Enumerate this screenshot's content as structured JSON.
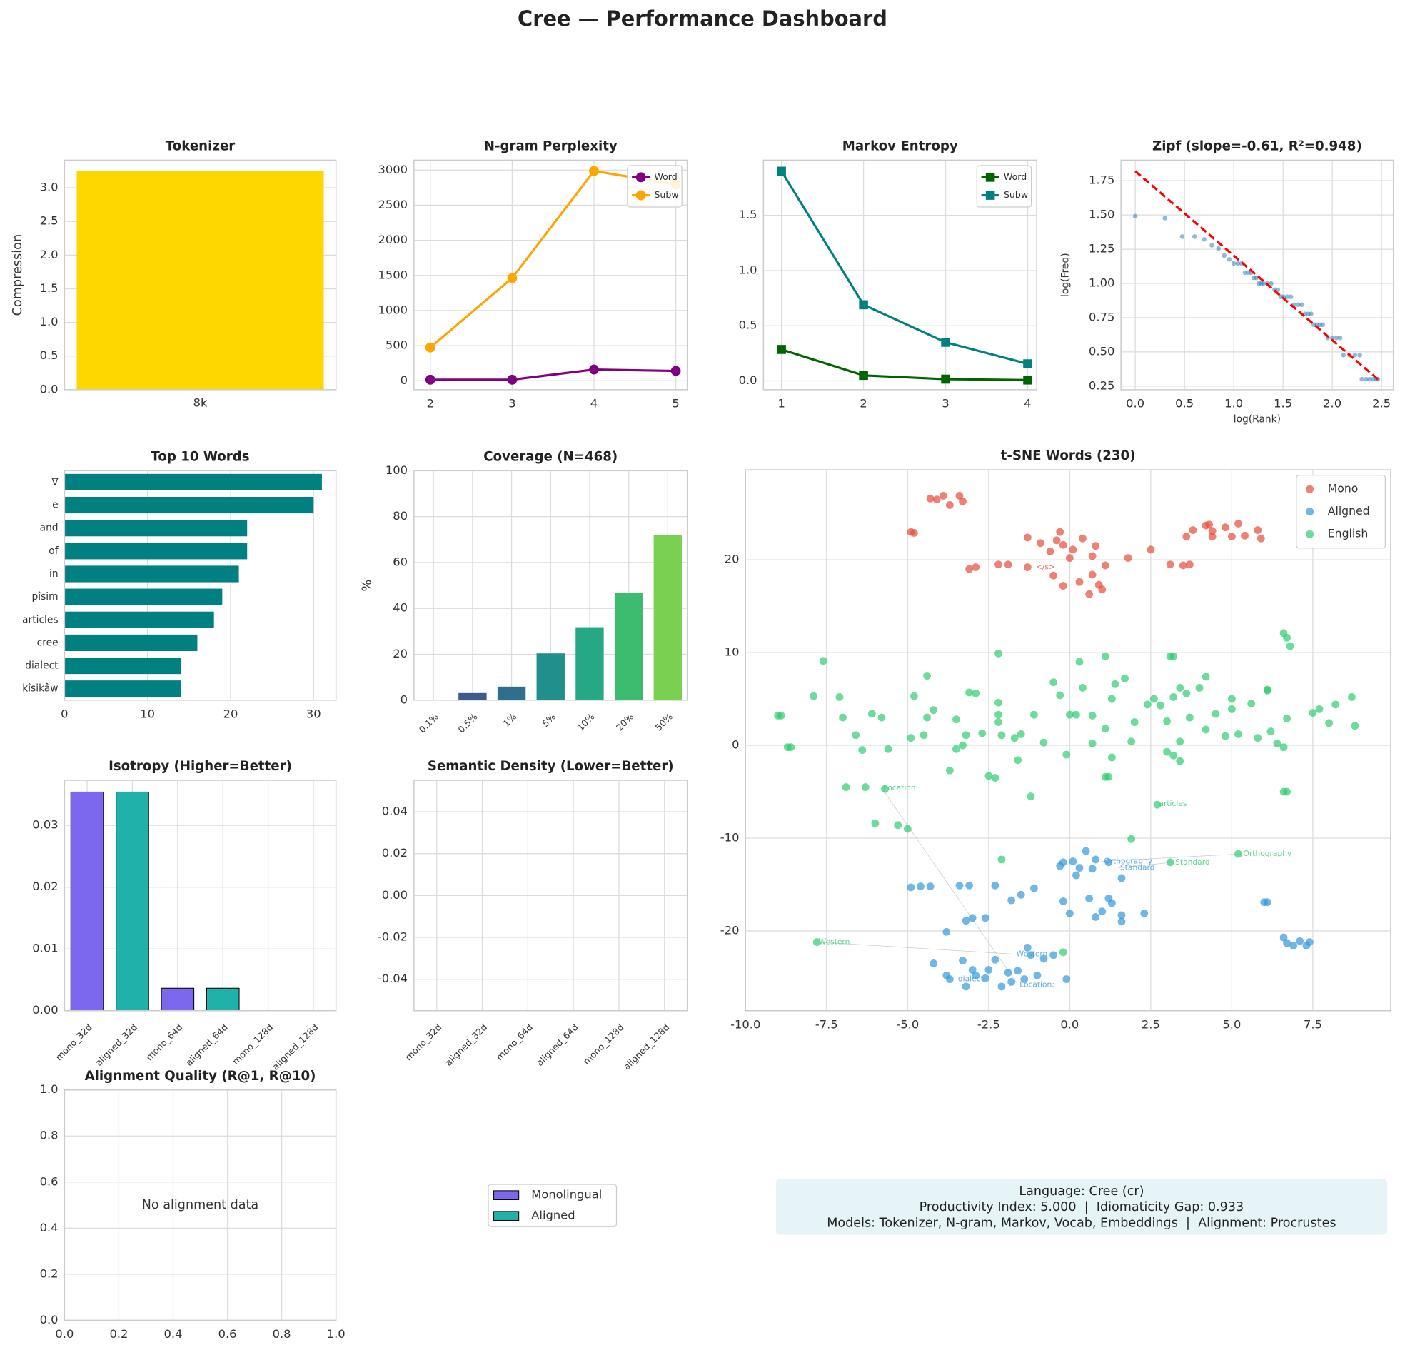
{
  "title": "Cree — Performance Dashboard",
  "chart_data": [
    {
      "type": "bar",
      "title": "Tokenizer",
      "ylabel": "Compression",
      "categories": [
        "8k"
      ],
      "values": [
        3.25
      ],
      "color": "#ffd700",
      "ylim": [
        0,
        3.41
      ],
      "yticks": [
        {
          "value": 0,
          "label": "0.0"
        },
        0.5,
        {
          "value": 1,
          "label": "1.0"
        },
        1.5,
        {
          "value": 2,
          "label": "2.0"
        },
        2.5,
        {
          "value": 3,
          "label": "3.0"
        }
      ],
      "grid": true
    },
    {
      "type": "line",
      "title": "N-gram Perplexity",
      "x": [
        2,
        3,
        4,
        5
      ],
      "marker": "o",
      "series": [
        {
          "name": "Word",
          "color": "#800080",
          "values": [
            15,
            15,
            160,
            140
          ]
        },
        {
          "name": "Subw",
          "color": "#ffa500",
          "values": [
            474,
            1462,
            2987,
            2795
          ]
        }
      ],
      "xlim": [
        1.8,
        5.14
      ],
      "xticks": [
        2,
        3,
        4,
        5
      ],
      "ylim": [
        -128,
        3141
      ],
      "yticks": [
        0,
        500,
        1000,
        1500,
        2000,
        2500,
        3000
      ],
      "grid": true,
      "legend": "upper right"
    },
    {
      "type": "line",
      "title": "Markov Entropy",
      "x": [
        1,
        2,
        3,
        4
      ],
      "marker": "s",
      "series": [
        {
          "name": "Word",
          "color": "#006400",
          "values": [
            0.285,
            0.05,
            0.016,
            0.008
          ]
        },
        {
          "name": "Subw",
          "color": "#008080",
          "values": [
            1.9,
            0.69,
            0.35,
            0.155
          ]
        }
      ],
      "xlim": [
        0.78,
        4.11
      ],
      "xticks": [
        1,
        2,
        3,
        4
      ],
      "ylim": [
        -0.08,
        2.0
      ],
      "yticks": [
        {
          "value": 0,
          "label": "0.0"
        },
        0.5,
        {
          "value": 1,
          "label": "1.0"
        },
        1.5
      ],
      "grid": true,
      "legend": "upper right"
    },
    {
      "type": "scatter",
      "title": "Zipf (slope=-0.61, R²=0.948)",
      "xlabel": "log(Rank)",
      "ylabel": "log(Freq)",
      "color": "#1f77b4",
      "alpha": 0.5,
      "x": [
        0,
        0.301,
        0.477,
        0.602,
        0.699,
        0.778,
        0.845,
        0.903,
        0.954,
        1.0,
        1.041,
        1.079,
        1.114,
        1.146,
        1.176,
        1.204,
        1.23,
        1.255,
        1.279,
        1.301,
        1.342,
        1.38,
        1.415,
        1.447,
        1.477,
        1.505,
        1.544,
        1.58,
        1.613,
        1.653,
        1.69,
        1.724,
        1.756,
        1.785,
        1.813,
        1.845,
        1.875,
        1.903,
        1.954,
        2.0,
        2.041,
        2.079,
        2.114,
        2.176,
        2.23,
        2.279,
        2.301,
        2.342,
        2.38,
        2.415,
        2.447,
        2.462
      ],
      "y": [
        1.491,
        1.477,
        1.342,
        1.342,
        1.322,
        1.279,
        1.255,
        1.204,
        1.176,
        1.146,
        1.146,
        1.146,
        1.079,
        1.079,
        1.079,
        1.041,
        1.041,
        1.0,
        1.0,
        1.0,
        1.0,
        1.0,
        0.954,
        0.954,
        0.903,
        0.903,
        0.903,
        0.903,
        0.845,
        0.845,
        0.845,
        0.778,
        0.778,
        0.778,
        0.699,
        0.699,
        0.699,
        0.699,
        0.602,
        0.602,
        0.602,
        0.602,
        0.477,
        0.477,
        0.477,
        0.477,
        0.301,
        0.301,
        0.301,
        0.301,
        0.301,
        0.301
      ],
      "fit": {
        "x": [
          0,
          2.48
        ],
        "y": [
          1.82,
          0.29
        ],
        "color": "#ff0000"
      },
      "xlim": [
        -0.145,
        2.62
      ],
      "xticks": [
        {
          "value": 0,
          "label": "0.0"
        },
        0.5,
        {
          "value": 1,
          "label": "1.0"
        },
        1.5,
        {
          "value": 2,
          "label": "2.0"
        },
        2.5
      ],
      "ylim": [
        0.224,
        1.9
      ],
      "yticks": [
        0.25,
        {
          "value": 0.5,
          "label": "0.50"
        },
        0.75,
        {
          "value": 1,
          "label": "1.00"
        },
        1.25,
        {
          "value": 1.5,
          "label": "1.50"
        },
        1.75
      ],
      "grid": true
    },
    {
      "type": "barh",
      "title": "Top 10 Words",
      "categories": [
        "∇",
        "e",
        "and",
        "of",
        "in",
        "pîsim",
        "articles",
        "cree",
        "dialect",
        "kîsikâw"
      ],
      "values": [
        31,
        30,
        22,
        22,
        21,
        19,
        18,
        16,
        14,
        14
      ],
      "color": "#008080",
      "xlim": [
        0,
        32.7
      ],
      "xticks": [
        0,
        10,
        20,
        30
      ],
      "grid": true
    },
    {
      "type": "bar",
      "title": "Coverage (N=468)",
      "ylabel": "%",
      "categories": [
        "0.1%",
        "0.5%",
        "1%",
        "5%",
        "10%",
        "20%",
        "50%"
      ],
      "values": [
        0.2,
        3.1,
        5.9,
        20.4,
        31.8,
        46.7,
        71.8
      ],
      "colors": [
        "#443983",
        "#3b5b8c",
        "#2e6f8e",
        "#218f8c",
        "#26a884",
        "#3dbb6f",
        "#7ad151"
      ],
      "ylim": [
        0,
        100
      ],
      "yticks": [
        0,
        20,
        40,
        60,
        80,
        100
      ],
      "grid": true,
      "xtick_rotation": 45
    },
    {
      "type": "bar",
      "title": "Isotropy (Higher=Better)",
      "categories": [
        "mono_32d",
        "aligned_32d",
        "mono_64d",
        "aligned_64d",
        "mono_128d",
        "aligned_128d"
      ],
      "values": [
        0.0354,
        0.0354,
        0.00364,
        0.00364,
        0,
        0
      ],
      "colors": [
        "#7b68ee",
        "#20b2aa",
        "#7b68ee",
        "#20b2aa",
        "#7b68ee",
        "#20b2aa"
      ],
      "edgecolor": "#000000",
      "ylim": [
        0,
        0.0373
      ],
      "yticks": [
        {
          "value": 0,
          "label": "0.00"
        },
        0.01,
        0.02,
        0.03
      ],
      "grid": true,
      "xtick_rotation": 45
    },
    {
      "type": "bar",
      "title": "Semantic Density (Lower=Better)",
      "categories": [
        "mono_32d",
        "aligned_32d",
        "mono_64d",
        "aligned_64d",
        "mono_128d",
        "aligned_128d"
      ],
      "values": [
        0,
        0,
        0,
        0,
        0,
        0
      ],
      "colors": [
        "#7b68ee",
        "#20b2aa",
        "#7b68ee",
        "#20b2aa",
        "#7b68ee",
        "#20b2aa"
      ],
      "edgecolor": "#000000",
      "ylim": [
        -0.055,
        0.055
      ],
      "yticks": [
        -0.04,
        -0.02,
        {
          "value": 0,
          "label": "0.00"
        },
        0.02,
        0.04
      ],
      "grid": true,
      "xtick_rotation": 45
    },
    {
      "type": "empty",
      "title": "Alignment Quality (R@1, R@10)",
      "annotation": "No alignment data",
      "xlim": [
        0,
        1
      ],
      "xticks": [
        {
          "value": 0,
          "label": "0.0"
        },
        0.2,
        0.4,
        0.6,
        0.8,
        {
          "value": 1,
          "label": "1.0"
        }
      ],
      "ylim": [
        0,
        1
      ],
      "yticks": [
        {
          "value": 0,
          "label": "0.0"
        },
        0.2,
        0.4,
        0.6,
        0.8,
        {
          "value": 1,
          "label": "1.0"
        }
      ],
      "grid": true
    },
    {
      "type": "scatter",
      "title": "t-SNE Words (230)",
      "alpha": 0.7,
      "legend": "upper right",
      "series": [
        {
          "name": "Mono",
          "color": "#e74c3c",
          "x": [
            -4.1,
            -3.9,
            -3.7,
            -3.4,
            -3.3,
            -4.3,
            -4.9,
            -4.8,
            -1.3,
            -0.9,
            -0.6,
            -0.4,
            -0.3,
            -0.2,
            0.1,
            0.0,
            0.4,
            0.8,
            0.7,
            1.1,
            -3.1,
            -2.9,
            -2.2,
            -1.9,
            -1.3,
            -0.5,
            -0.2,
            0.3,
            0.7,
            0.9,
            0.6,
            1.0,
            1.8,
            2.5,
            3.1,
            3.5,
            3.7,
            3.6,
            3.8,
            4.2,
            4.3,
            4.4,
            4.4,
            4.8,
            5.0,
            5.2,
            5.4,
            5.8,
            5.9
          ],
          "y": [
            26.5,
            26.9,
            25.9,
            26.9,
            26.3,
            26.6,
            23.0,
            22.9,
            22.4,
            21.8,
            20.9,
            22.1,
            23.0,
            21.6,
            21.1,
            20.2,
            22.3,
            21.5,
            20.4,
            19.4,
            19.0,
            19.2,
            19.5,
            19.5,
            19.2,
            18.3,
            17.2,
            17.6,
            18.4,
            17.3,
            16.3,
            16.8,
            20.2,
            21.1,
            19.5,
            19.4,
            19.5,
            22.5,
            23.2,
            23.7,
            23.8,
            22.5,
            23.1,
            23.5,
            22.5,
            23.9,
            22.6,
            23.2,
            22.3
          ]
        },
        {
          "name": "Aligned",
          "color": "#3498db",
          "x": [
            -3.8,
            -3.7,
            -3.3,
            -3.2,
            -3.0,
            -2.9,
            -2.6,
            -2.5,
            -2.3,
            -2.1,
            -1.9,
            -1.8,
            -1.6,
            -1.4,
            -1.2,
            -1.0,
            -0.8,
            -0.1,
            -0.5,
            -1.3,
            -4.9,
            -4.6,
            -4.3,
            -3.4,
            -3.1,
            -3.2,
            -3.0,
            -2.6,
            -2.3,
            -1.8,
            -1.5,
            -1.1,
            -3.8,
            -4.2,
            -0.3,
            -0.2,
            0.1,
            0.2,
            0.3,
            0.7,
            0.5,
            0.8,
            1.2,
            1.6,
            -0.2,
            0.0,
            0.6,
            0.8,
            1.0,
            1.2,
            1.3,
            1.6,
            1.6,
            2.3,
            6.0,
            6.1,
            6.6,
            6.7,
            6.9,
            7.1,
            7.3,
            7.4
          ],
          "y": [
            -24.8,
            -25.2,
            -23.2,
            -26.0,
            -24.2,
            -24.8,
            -25.1,
            -24.2,
            -23.1,
            -26.0,
            -24.5,
            -25.5,
            -24.3,
            -25.2,
            -22.6,
            -24.8,
            -23.0,
            -25.2,
            -22.6,
            -21.8,
            -15.3,
            -15.2,
            -15.2,
            -15.1,
            -15.1,
            -18.9,
            -18.6,
            -18.6,
            -15.1,
            -16.7,
            -16.1,
            -15.4,
            -20.1,
            -23.5,
            -13.0,
            -12.6,
            -12.5,
            -14.0,
            -13.2,
            -13.3,
            -11.4,
            -12.3,
            -12.6,
            -14.3,
            -16.8,
            -18.1,
            -16.5,
            -18.5,
            -17.9,
            -16.5,
            -17.0,
            -18.3,
            -19.0,
            -18.1,
            -16.9,
            -16.9,
            -20.7,
            -21.3,
            -21.6,
            -21.1,
            -21.6,
            -21.2
          ]
        },
        {
          "name": "English",
          "color": "#2ecc71",
          "x": [
            -9.0,
            -8.9,
            -8.7,
            -8.6,
            -7.9,
            -7.6,
            -7.1,
            -7.0,
            -6.6,
            -6.4,
            -6.9,
            -6.3,
            -6.1,
            -5.8,
            -5.6,
            -5.7,
            -6.0,
            -5.3,
            -5.0,
            -4.9,
            -4.8,
            -4.4,
            -4.4,
            -4.5,
            -4.2,
            -3.7,
            -3.5,
            -3.5,
            -3.3,
            -3.2,
            -3.1,
            -2.9,
            -2.7,
            -2.5,
            -2.3,
            -2.2,
            -2.2,
            -2.2,
            -2.1,
            -2.2,
            -1.7,
            -1.6,
            -1.5,
            -1.1,
            -1.2,
            -0.8,
            -0.5,
            -0.3,
            0.0,
            -0.1,
            0.2,
            0.3,
            0.4,
            0.7,
            0.7,
            1.1,
            1.1,
            1.1,
            1.2,
            1.3,
            1.3,
            1.4,
            1.7,
            1.9,
            2.0,
            2.4,
            2.6,
            2.8,
            3.0,
            3.1,
            3.2,
            3.2,
            3.0,
            3.2,
            3.4,
            3.4,
            3.4,
            3.6,
            3.7,
            4.0,
            4.2,
            4.2,
            4.5,
            4.8,
            5.0,
            5.0,
            5.2,
            5.6,
            5.8,
            6.1,
            6.1,
            6.2,
            6.4,
            6.6,
            6.7,
            6.8,
            6.7,
            6.6,
            6.6,
            6.7,
            7.5,
            7.7,
            8.0,
            8.2,
            8.7,
            8.8,
            1.9,
            2.7,
            3.1,
            5.2,
            -2.1,
            -0.2,
            -7.8
          ],
          "y": [
            3.2,
            3.2,
            -0.2,
            -0.2,
            5.3,
            9.1,
            5.2,
            3.0,
            1.1,
            -0.5,
            -4.5,
            -4.5,
            3.4,
            3.0,
            -0.4,
            -4.7,
            -8.4,
            -8.6,
            -9.0,
            0.8,
            5.3,
            3.0,
            7.5,
            1.1,
            3.8,
            -2.7,
            -0.4,
            2.8,
            0.0,
            1.1,
            5.7,
            5.6,
            1.3,
            -3.3,
            -3.5,
            9.9,
            4.6,
            3.3,
            1.1,
            2.5,
            0.8,
            -1.6,
            1.2,
            3.3,
            -5.5,
            0.3,
            6.8,
            5.4,
            3.3,
            -1.0,
            3.3,
            9.0,
            6.2,
            3.2,
            0.2,
            9.6,
            1.8,
            -3.4,
            -3.4,
            5.0,
            -1.3,
            6.6,
            7.2,
            0.4,
            2.5,
            4.4,
            5.0,
            4.3,
            2.6,
            9.6,
            9.6,
            5.2,
            -0.7,
            -1.1,
            -1.7,
            0.4,
            6.2,
            5.6,
            3.0,
            6.2,
            7.4,
            1.7,
            3.4,
            1.0,
            5.0,
            3.9,
            1.2,
            4.5,
            0.8,
            6.0,
            5.9,
            1.5,
            0.2,
            12.1,
            11.6,
            10.7,
            2.9,
            -0.2,
            -5.0,
            -5.0,
            3.5,
            3.9,
            2.4,
            4.4,
            5.2,
            2.1,
            -10.1,
            -6.4,
            -12.6,
            -11.7,
            -12.3,
            -22.3,
            -21.2
          ]
        }
      ],
      "annotations": [
        {
          "text": "</s>",
          "x": -1.1,
          "y": 19.2,
          "color": "#e74c3c"
        },
        {
          "text": "Location:",
          "x": -5.8,
          "y": -4.6,
          "color": "#2ecc71"
        },
        {
          "text": "articles",
          "x": 2.7,
          "y": -6.3,
          "color": "#2ecc71"
        },
        {
          "text": "Standard",
          "x": 3.2,
          "y": -12.6,
          "color": "#2ecc71"
        },
        {
          "text": "Orthography",
          "x": 5.3,
          "y": -11.7,
          "color": "#2ecc71"
        },
        {
          "text": "Western",
          "x": -7.8,
          "y": -21.2,
          "color": "#2ecc71"
        },
        {
          "text": "Orthography",
          "x": 1.0,
          "y": -12.5,
          "color": "#3498db"
        },
        {
          "text": "Standard",
          "x": 1.5,
          "y": -13.2,
          "color": "#3498db"
        },
        {
          "text": "Western",
          "x": -1.7,
          "y": -22.5,
          "color": "#3498db"
        },
        {
          "text": "dialect",
          "x": -3.5,
          "y": -25.2,
          "color": "#3498db"
        },
        {
          "text": "Location:",
          "x": -1.6,
          "y": -25.8,
          "color": "#3498db"
        }
      ],
      "xlim": [
        -10,
        9.9
      ],
      "xticks": [
        {
          "value": -10,
          "label": "-10.0"
        },
        -7.5,
        {
          "value": -5,
          "label": "-5.0"
        },
        -2.5,
        {
          "value": 0,
          "label": "0.0"
        },
        2.5,
        {
          "value": 5,
          "label": "5.0"
        },
        7.5
      ],
      "ylim": [
        -28.6,
        29.7
      ],
      "yticks": [
        -20,
        -10,
        0,
        10,
        20
      ],
      "grid": true
    }
  ],
  "bar_legend": [
    {
      "label": "Monolingual",
      "color": "#7b68ee"
    },
    {
      "label": "Aligned",
      "color": "#20b2aa"
    }
  ],
  "info_box": [
    "Language: Cree (cr)",
    "Productivity Index: 5.000  |  Idiomaticity Gap: 0.933",
    "Models: Tokenizer, N-gram, Markov, Vocab, Embeddings  |  Alignment: Procrustes"
  ]
}
